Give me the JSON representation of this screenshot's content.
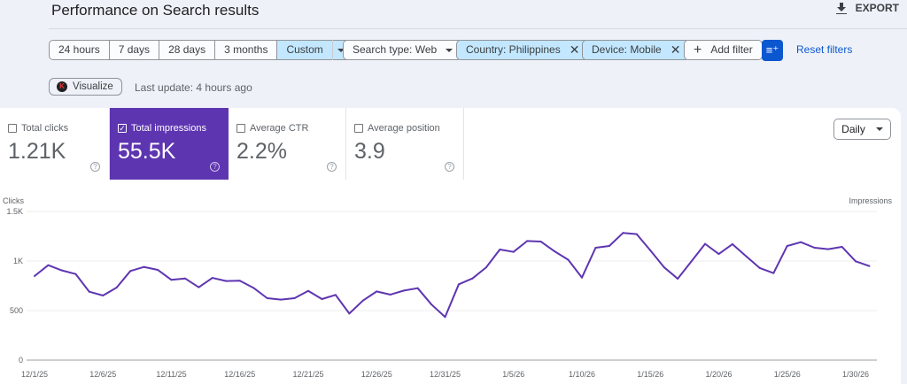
{
  "header": {
    "title": "Performance on Search results",
    "export_label": "EXPORT"
  },
  "date_ranges": [
    "24 hours",
    "7 days",
    "28 days",
    "3 months",
    "Custom"
  ],
  "selected_range": "Custom",
  "filters": {
    "search_type": "Search type: Web",
    "country": "Country: Philippines",
    "device": "Device: Mobile",
    "add_filter": "Add filter",
    "reset": "Reset filters"
  },
  "visualize_label": "Visualize",
  "logo_letter": "K",
  "last_update": "Last update: 4 hours ago",
  "metrics": [
    {
      "label": "Total clicks",
      "value": "1.21K",
      "checked": false
    },
    {
      "label": "Total impressions",
      "value": "55.5K",
      "checked": true
    },
    {
      "label": "Average CTR",
      "value": "2.2%",
      "checked": false
    },
    {
      "label": "Average position",
      "value": "3.9",
      "checked": false
    }
  ],
  "granularity": "Daily",
  "colors": {
    "impressions": "#5e35b1",
    "accent": "#0b57d0",
    "chip_selected": "#c2e7ff"
  },
  "chart_data": {
    "type": "line",
    "left_axis_label": "Clicks",
    "right_axis_label": "Impressions",
    "ylim": [
      0,
      1500
    ],
    "y_ticks": [
      {
        "v": 0,
        "label": "0"
      },
      {
        "v": 500,
        "label": "500"
      },
      {
        "v": 1000,
        "label": "1K"
      },
      {
        "v": 1500,
        "label": "1.5K"
      }
    ],
    "x_tick_labels": [
      "12/1/25",
      "12/6/25",
      "12/11/25",
      "12/16/25",
      "12/21/25",
      "12/26/25",
      "12/31/25",
      "1/5/26",
      "1/10/26",
      "1/15/26",
      "1/20/26",
      "1/25/26",
      "1/30/26"
    ],
    "x_start": "12/1/25",
    "x_end": "1/31/26",
    "grid": true,
    "series": [
      {
        "values": [
          848,
          958,
          905,
          869,
          690,
          652,
          732,
          899,
          940,
          911,
          810,
          824,
          735,
          830,
          798,
          801,
          729,
          625,
          610,
          625,
          699,
          616,
          658,
          470,
          601,
          693,
          661,
          702,
          726,
          562,
          435,
          765,
          824,
          935,
          1116,
          1092,
          1202,
          1196,
          1098,
          1012,
          833,
          1134,
          1152,
          1283,
          1271,
          1107,
          937,
          821,
          997,
          1173,
          1071,
          1170,
          1048,
          929,
          878,
          1152,
          1190,
          1134,
          1119,
          1143,
          997,
          949
        ]
      }
    ]
  }
}
